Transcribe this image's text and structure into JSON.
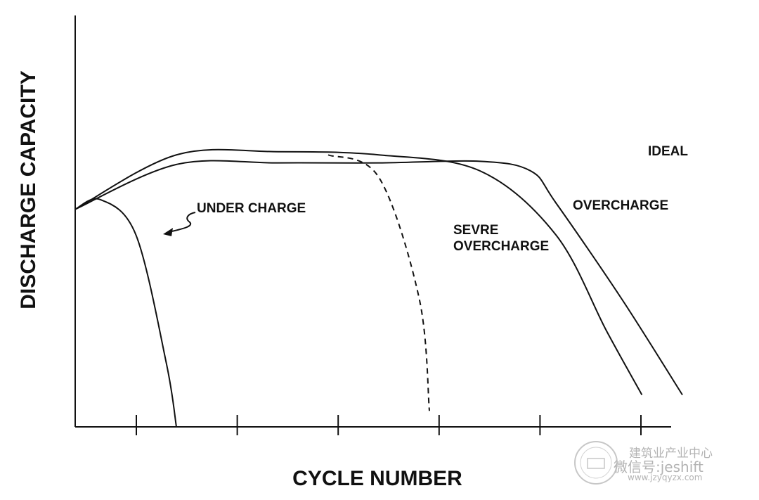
{
  "chart_data": {
    "type": "line",
    "xlabel": "CYCLE NUMBER",
    "ylabel": "DISCHARGE CAPACITY",
    "x_ticks": 6,
    "grid": false,
    "legend": "none",
    "series": [
      {
        "name": "IDEAL",
        "style": "solid",
        "x": [
          0,
          2,
          4,
          6,
          8,
          9,
          9.5,
          10.8,
          12
        ],
        "y": [
          68,
          82,
          82.5,
          82.5,
          83,
          80,
          70,
          40,
          10
        ]
      },
      {
        "name": "OVERCHARGE",
        "style": "solid",
        "x": [
          0,
          2,
          4,
          6,
          8,
          9.5,
          10.5,
          11.2
        ],
        "y": [
          68,
          85,
          86,
          85,
          80,
          60,
          30,
          10
        ]
      },
      {
        "name": "SEVRE OVERCHARGE",
        "style": "dashed",
        "x": [
          5,
          6,
          6.8,
          7
        ],
        "y": [
          85,
          78,
          40,
          5
        ]
      },
      {
        "name": "UNDER CHARGE",
        "style": "solid",
        "x": [
          0,
          0.5,
          1.2,
          1.8,
          2
        ],
        "y": [
          68,
          71,
          60,
          20,
          0
        ]
      }
    ]
  },
  "watermark": {
    "line1": "建筑业产业中心",
    "line2": "微信号:jeshift",
    "line3": "www.jzyqyzx.com"
  }
}
